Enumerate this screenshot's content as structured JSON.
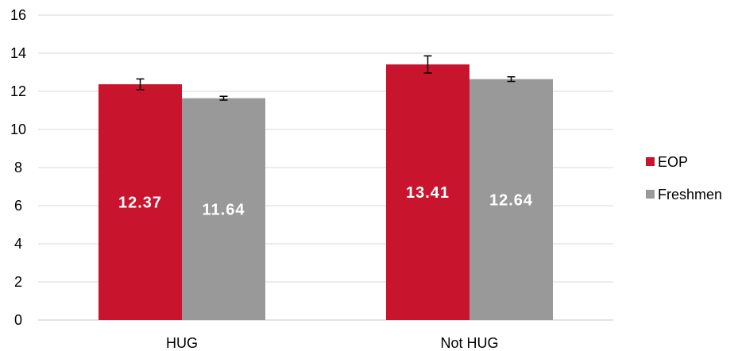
{
  "chart_data": {
    "type": "bar",
    "categories": [
      "HUG",
      "Not HUG"
    ],
    "series": [
      {
        "name": "EOP",
        "color": "#c8142c",
        "values": [
          12.37,
          13.41
        ],
        "errors": [
          0.28,
          0.45
        ],
        "labels": [
          "12.37",
          "13.41"
        ]
      },
      {
        "name": "Freshmen",
        "color": "#999999",
        "values": [
          11.64,
          12.64
        ],
        "errors": [
          0.1,
          0.12
        ],
        "labels": [
          "11.64",
          "12.64"
        ]
      }
    ],
    "ylim": [
      0,
      16
    ],
    "yticks": [
      0,
      2,
      4,
      6,
      8,
      10,
      12,
      14,
      16
    ],
    "ytick_labels": [
      "0",
      "2",
      "4",
      "6",
      "8",
      "10",
      "12",
      "14",
      "16"
    ],
    "grid": true,
    "legend_position": "right",
    "title": "",
    "xlabel": "",
    "ylabel": ""
  }
}
